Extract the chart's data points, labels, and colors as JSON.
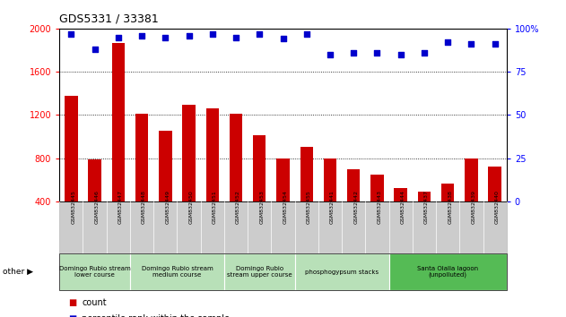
{
  "title": "GDS5331 / 33381",
  "samples": [
    "GSM832445",
    "GSM832446",
    "GSM832447",
    "GSM832448",
    "GSM832449",
    "GSM832450",
    "GSM832451",
    "GSM832452",
    "GSM832453",
    "GSM832454",
    "GSM832455",
    "GSM832441",
    "GSM832442",
    "GSM832443",
    "GSM832444",
    "GSM832437",
    "GSM832438",
    "GSM832439",
    "GSM832440"
  ],
  "counts": [
    1380,
    790,
    1870,
    1210,
    1050,
    1290,
    1260,
    1210,
    1010,
    800,
    900,
    800,
    700,
    650,
    520,
    490,
    560,
    800,
    720
  ],
  "percentiles": [
    97,
    88,
    95,
    96,
    95,
    96,
    97,
    95,
    97,
    94,
    97,
    85,
    86,
    86,
    85,
    86,
    92,
    91,
    91
  ],
  "groups": [
    {
      "label": "Domingo Rubio stream\nlower course",
      "start": 0,
      "end": 3
    },
    {
      "label": "Domingo Rubio stream\nmedium course",
      "start": 3,
      "end": 7
    },
    {
      "label": "Domingo Rubio\nstream upper course",
      "start": 7,
      "end": 10
    },
    {
      "label": "phosphogypsum stacks",
      "start": 10,
      "end": 14
    },
    {
      "label": "Santa Olalla lagoon\n(unpolluted)",
      "start": 14,
      "end": 19
    }
  ],
  "group_colors": [
    "#b8e0b8",
    "#b8e0b8",
    "#b8e0b8",
    "#b8e0b8",
    "#55bb55"
  ],
  "ylim_left": [
    400,
    2000
  ],
  "ylim_right": [
    0,
    100
  ],
  "yticks_left": [
    400,
    800,
    1200,
    1600,
    2000
  ],
  "yticks_right": [
    0,
    25,
    50,
    75,
    100
  ],
  "bar_color": "#cc0000",
  "dot_color": "#0000cc",
  "xtick_bg": "#c8c8c8",
  "group_sep_color": "#ffffff"
}
